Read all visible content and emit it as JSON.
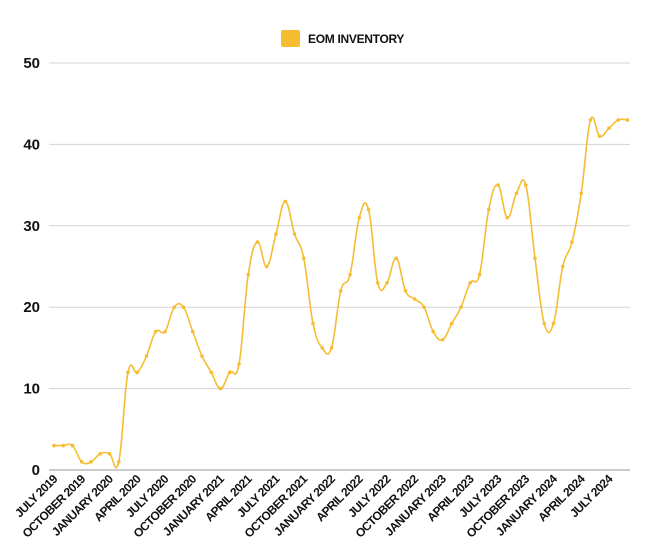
{
  "chart_data": {
    "type": "line",
    "title": "",
    "xlabel": "",
    "ylabel": "",
    "ylim": [
      0,
      50
    ],
    "y_ticks": [
      "0",
      "10",
      "20",
      "30",
      "40",
      "50"
    ],
    "grid": true,
    "legend_position": "top-center",
    "x_tick_labels": [
      "JULY 2019",
      "OCTOBER 2019",
      "JANUARY 2020",
      "APRIL 2020",
      "JULY 2020",
      "OCTOBER 2020",
      "JANUARY 2021",
      "APRIL 2021",
      "JULY 2021",
      "OCTOBER 2021",
      "JANUARY 2022",
      "APRIL 2022",
      "JULY 2022",
      "OCTOBER 2022",
      "JANUARY 2023",
      "APRIL 2023",
      "JULY 2023",
      "OCTOBER 2023",
      "JANUARY 2024",
      "APRIL 2024",
      "JULY 2024"
    ],
    "series": [
      {
        "name": "EOM INVENTORY",
        "color": "#f6bd33",
        "values": [
          3,
          3,
          3,
          1,
          1,
          2,
          2,
          1,
          12,
          12,
          14,
          17,
          17,
          20,
          20,
          17,
          14,
          12,
          10,
          12,
          13,
          24,
          28,
          25,
          29,
          33,
          29,
          26,
          18,
          15,
          15,
          22,
          24,
          31,
          32,
          23,
          23,
          26,
          22,
          21,
          20,
          17,
          16,
          18,
          20,
          23,
          24,
          32,
          35,
          31,
          34,
          35,
          26,
          18,
          18,
          25,
          28,
          34,
          43,
          41,
          42,
          43,
          43
        ]
      }
    ]
  }
}
